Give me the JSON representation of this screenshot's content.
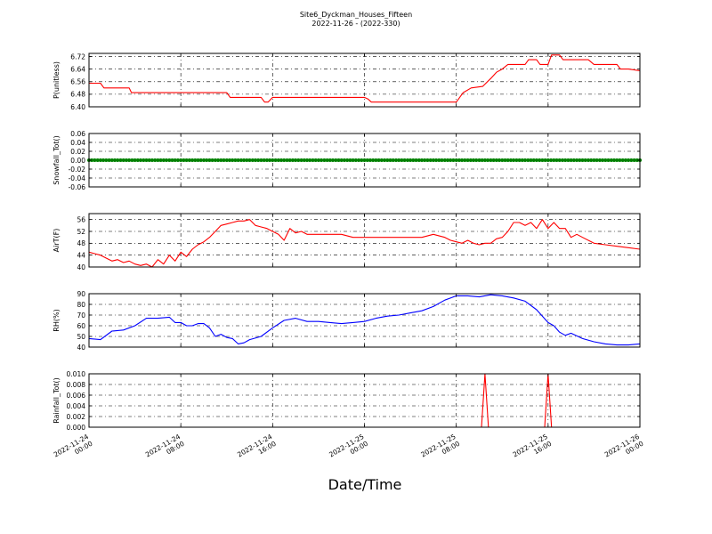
{
  "title": "Site6_Dyckman_Houses_Fifteen",
  "subtitle": "2022-11-26 - (2022-330)",
  "xlabel": "Date/Time",
  "x_ticks": [
    {
      "t": 0,
      "line1": "2022-11-24",
      "line2": "00:00"
    },
    {
      "t": 8,
      "line1": "2022-11-24",
      "line2": "08:00"
    },
    {
      "t": 16,
      "line1": "2022-11-24",
      "line2": "16:00"
    },
    {
      "t": 24,
      "line1": "2022-11-25",
      "line2": "00:00"
    },
    {
      "t": 32,
      "line1": "2022-11-25",
      "line2": "08:00"
    },
    {
      "t": 40,
      "line1": "2022-11-25",
      "line2": "16:00"
    },
    {
      "t": 48,
      "line1": "2022-11-26",
      "line2": "00:00"
    }
  ],
  "chart_data": [
    {
      "type": "line",
      "ylabel": "P(unitless)",
      "ylim": [
        6.4,
        6.74
      ],
      "yticks": [
        6.4,
        6.48,
        6.56,
        6.64,
        6.72
      ],
      "tick_decimals": 2,
      "color": "#ff0000",
      "grid": true,
      "x_hours": [
        0,
        1,
        1.3,
        3.5,
        3.7,
        8,
        12,
        12.3,
        15,
        15.3,
        15.6,
        16,
        20,
        24,
        24.3,
        24.6,
        26,
        28,
        32,
        32.3,
        32.6,
        33.3,
        34.3,
        35,
        35.5,
        36,
        36.5,
        37,
        38,
        38.3,
        39,
        39.3,
        40,
        40.3,
        41,
        41.3,
        42,
        43.5,
        44,
        46,
        46.3,
        47,
        48
      ],
      "y": [
        6.55,
        6.55,
        6.52,
        6.52,
        6.49,
        6.49,
        6.49,
        6.46,
        6.46,
        6.43,
        6.43,
        6.46,
        6.46,
        6.46,
        6.45,
        6.43,
        6.43,
        6.43,
        6.43,
        6.46,
        6.49,
        6.52,
        6.53,
        6.58,
        6.62,
        6.64,
        6.67,
        6.67,
        6.67,
        6.7,
        6.7,
        6.67,
        6.67,
        6.73,
        6.73,
        6.7,
        6.7,
        6.7,
        6.67,
        6.67,
        6.64,
        6.64,
        6.63
      ]
    },
    {
      "type": "scatter",
      "ylabel": "Snowfall_Tot()",
      "ylim": [
        -0.06,
        0.06
      ],
      "yticks": [
        -0.06,
        -0.04,
        -0.02,
        0.0,
        0.02,
        0.04,
        0.06
      ],
      "tick_decimals": 2,
      "color": "#008000",
      "grid": true,
      "constant_value": 0.0,
      "x_range_hours": [
        0,
        48
      ],
      "point_interval_hours": 0.25
    },
    {
      "type": "line",
      "ylabel": "AirT(F)",
      "ylim": [
        40,
        58
      ],
      "yticks": [
        40,
        44,
        48,
        52,
        56
      ],
      "tick_decimals": 0,
      "color": "#ff0000",
      "grid": true,
      "x_hours": [
        0,
        0.5,
        1,
        1.5,
        2,
        2.5,
        3,
        3.5,
        4,
        4.5,
        5,
        5.5,
        6,
        6.5,
        7,
        7.5,
        8,
        8.5,
        9,
        9.5,
        10,
        10.5,
        11,
        11.5,
        12,
        12.5,
        13,
        13.5,
        14,
        14.5,
        15,
        15.5,
        16,
        16.5,
        17,
        17.5,
        18,
        18.5,
        19,
        19.5,
        20,
        21,
        22,
        23,
        24,
        25,
        26,
        27,
        28,
        29,
        30,
        31,
        31.5,
        32,
        32.5,
        33,
        33.5,
        34,
        34.5,
        35,
        35.5,
        36,
        36.5,
        37,
        37.5,
        38,
        38.5,
        39,
        39.5,
        40,
        40.5,
        41,
        41.5,
        42,
        42.5,
        43,
        44,
        45,
        46,
        47,
        48
      ],
      "y": [
        45,
        44.5,
        44,
        43,
        42,
        42.5,
        41.5,
        42,
        41,
        40.5,
        41,
        40,
        42.5,
        41,
        44,
        42,
        45,
        43.5,
        46,
        47.5,
        48.5,
        50,
        52,
        54,
        54.5,
        55,
        55.5,
        55.5,
        56,
        54,
        53.5,
        53,
        52,
        51,
        49,
        53,
        51.5,
        52,
        51,
        51,
        51,
        51,
        51,
        50,
        50,
        50,
        50,
        50,
        50,
        50,
        51,
        50,
        49,
        48.5,
        48,
        49,
        48,
        47.5,
        48,
        48,
        49.5,
        50,
        52,
        55,
        55,
        54,
        55,
        53,
        56,
        53,
        55,
        53,
        53,
        50,
        51,
        50,
        48,
        47.5,
        47,
        46.5,
        46
      ]
    },
    {
      "type": "line",
      "ylabel": "RH(%)",
      "ylim": [
        40,
        90
      ],
      "yticks": [
        40,
        50,
        60,
        70,
        80,
        90
      ],
      "tick_decimals": 0,
      "color": "#0000ff",
      "grid": true,
      "x_hours": [
        0,
        1,
        2,
        3,
        4,
        5,
        6,
        7,
        7.5,
        8,
        8.5,
        9,
        9.5,
        10,
        10.5,
        11,
        11.5,
        12,
        12.5,
        13,
        13.5,
        14,
        15,
        16,
        17,
        18,
        19,
        20,
        21,
        22,
        23,
        24,
        25,
        26,
        27,
        28,
        29,
        30,
        31,
        32,
        33,
        34,
        35,
        36,
        37,
        38,
        39,
        40,
        40.5,
        41,
        41.5,
        42,
        43,
        44,
        45,
        46,
        47,
        48
      ],
      "y": [
        48,
        47,
        55,
        56,
        60,
        67,
        67,
        68,
        63,
        63,
        60,
        60,
        62,
        62,
        58,
        50,
        52,
        49,
        48,
        43,
        44,
        47,
        50,
        58,
        65,
        67,
        64,
        64,
        63,
        62,
        63,
        64,
        67,
        69,
        70,
        72,
        74,
        78,
        84,
        88,
        88,
        87,
        89,
        88,
        86,
        83,
        75,
        63,
        60,
        54,
        51,
        53,
        48,
        45,
        43,
        42,
        42,
        43
      ]
    },
    {
      "type": "line",
      "ylabel": "Rainfall_Tot()",
      "ylim": [
        0.0,
        0.01
      ],
      "yticks": [
        0.0,
        0.002,
        0.004,
        0.006,
        0.008,
        0.01
      ],
      "tick_decimals": 3,
      "color": "#ff0000",
      "grid": true,
      "x_hours": [
        0,
        34.2,
        34.5,
        34.8,
        39.7,
        40,
        40.3,
        48
      ],
      "y": [
        0,
        0,
        0.01,
        0,
        0,
        0.01,
        0,
        0
      ]
    }
  ]
}
